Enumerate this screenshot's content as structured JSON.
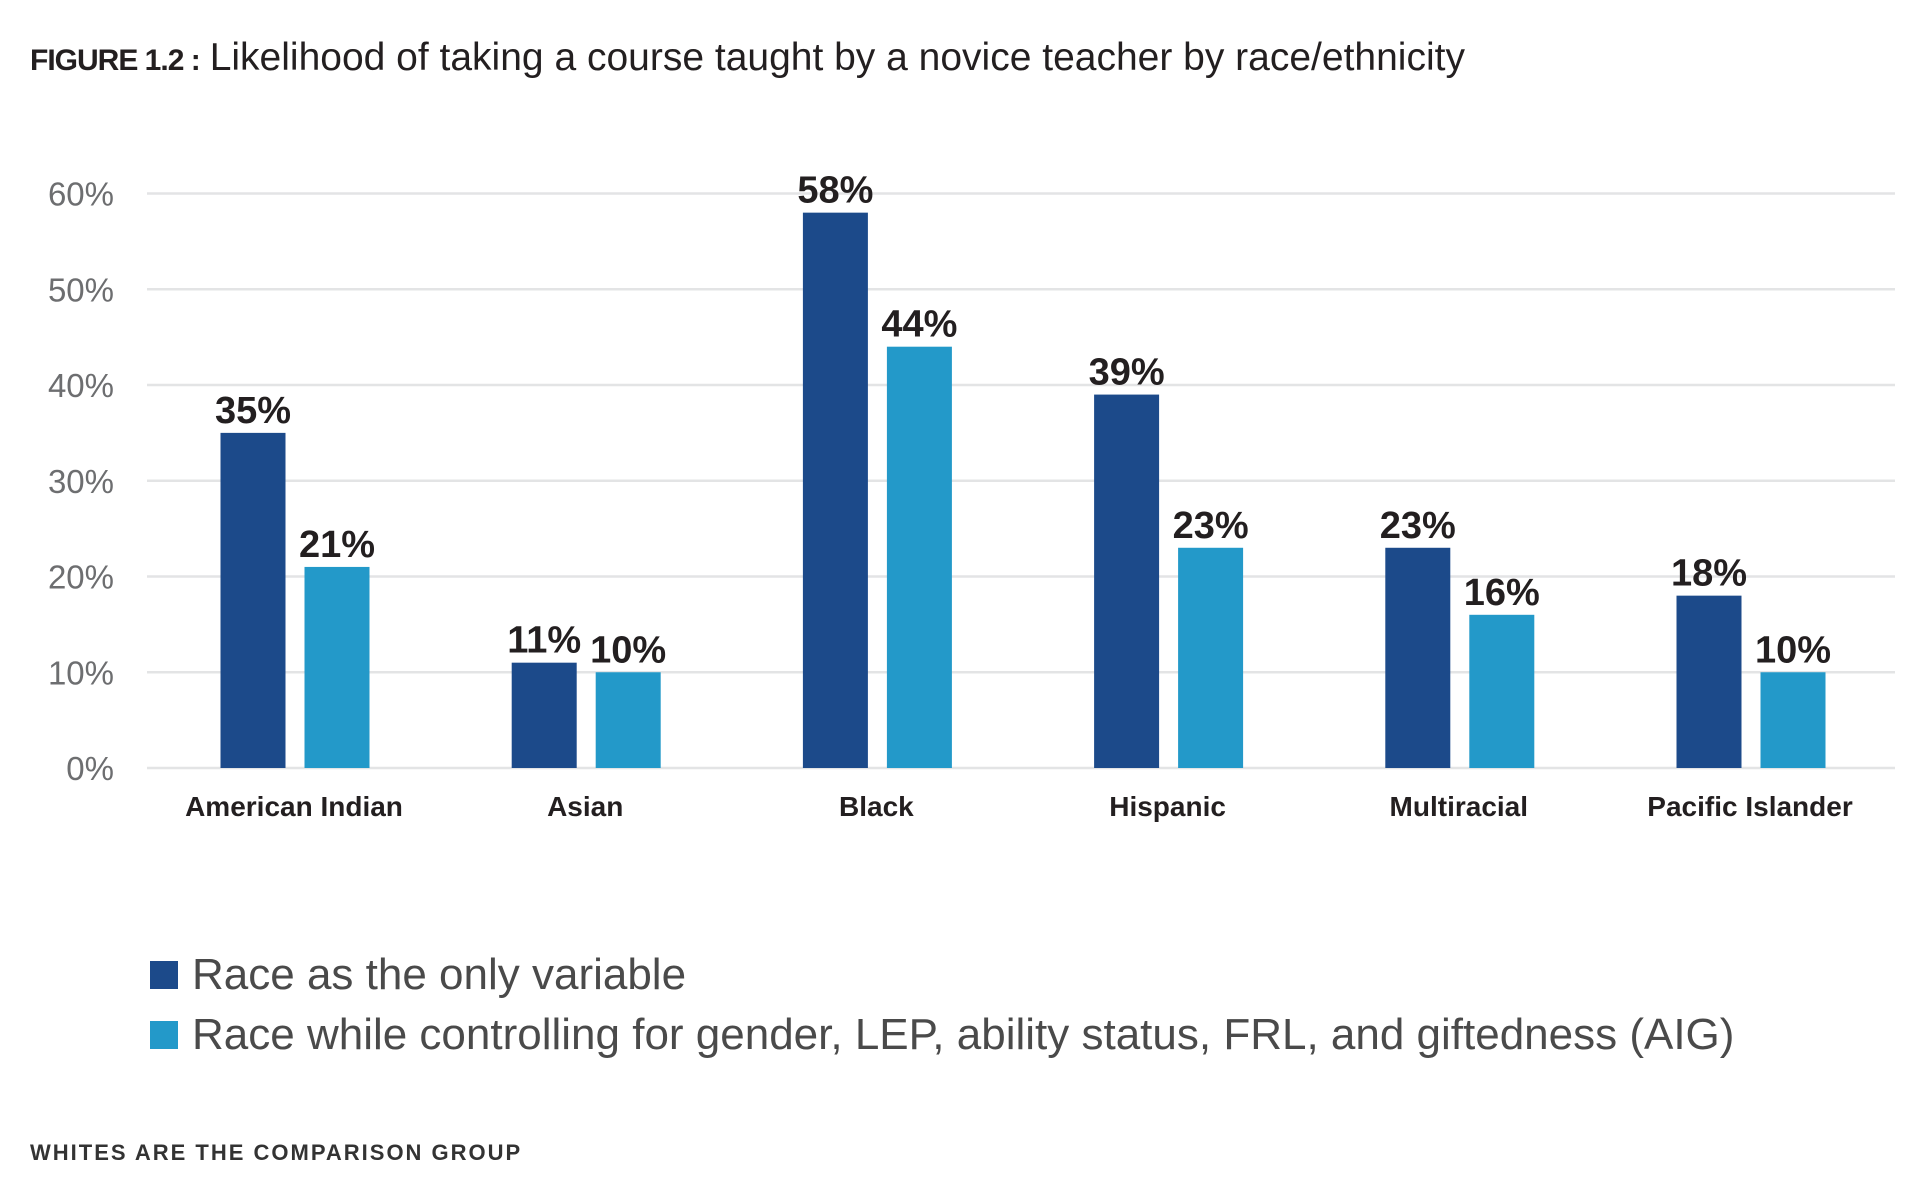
{
  "chart_data": {
    "type": "bar",
    "title_prefix": "FIGURE 1.2 :",
    "title": "Likelihood of taking a course taught by a novice teacher by race/ethnicity",
    "categories": [
      "American Indian",
      "Asian",
      "Black",
      "Hispanic",
      "Multiracial",
      "Pacific Islander"
    ],
    "series": [
      {
        "name": "Race as the only variable",
        "values": [
          35,
          11,
          58,
          39,
          23,
          18
        ],
        "color": "#1c4a8a"
      },
      {
        "name": "Race while controlling for gender, LEP, ability status, FRL, and giftedness (AIG)",
        "values": [
          21,
          10,
          44,
          23,
          16,
          10
        ],
        "color": "#2399c9"
      }
    ],
    "data_labels": [
      [
        "35%",
        "11%",
        "58%",
        "39%",
        "23%",
        "18%"
      ],
      [
        "21%",
        "10%",
        "44%",
        "23%",
        "16%",
        "10%"
      ]
    ],
    "yticks": [
      "0%",
      "10%",
      "20%",
      "30%",
      "40%",
      "50%",
      "60%"
    ],
    "ylim": [
      0,
      60
    ],
    "grid": true,
    "legend_placement": "bottom-left",
    "note": "WHITES ARE THE COMPARISON GROUP"
  }
}
